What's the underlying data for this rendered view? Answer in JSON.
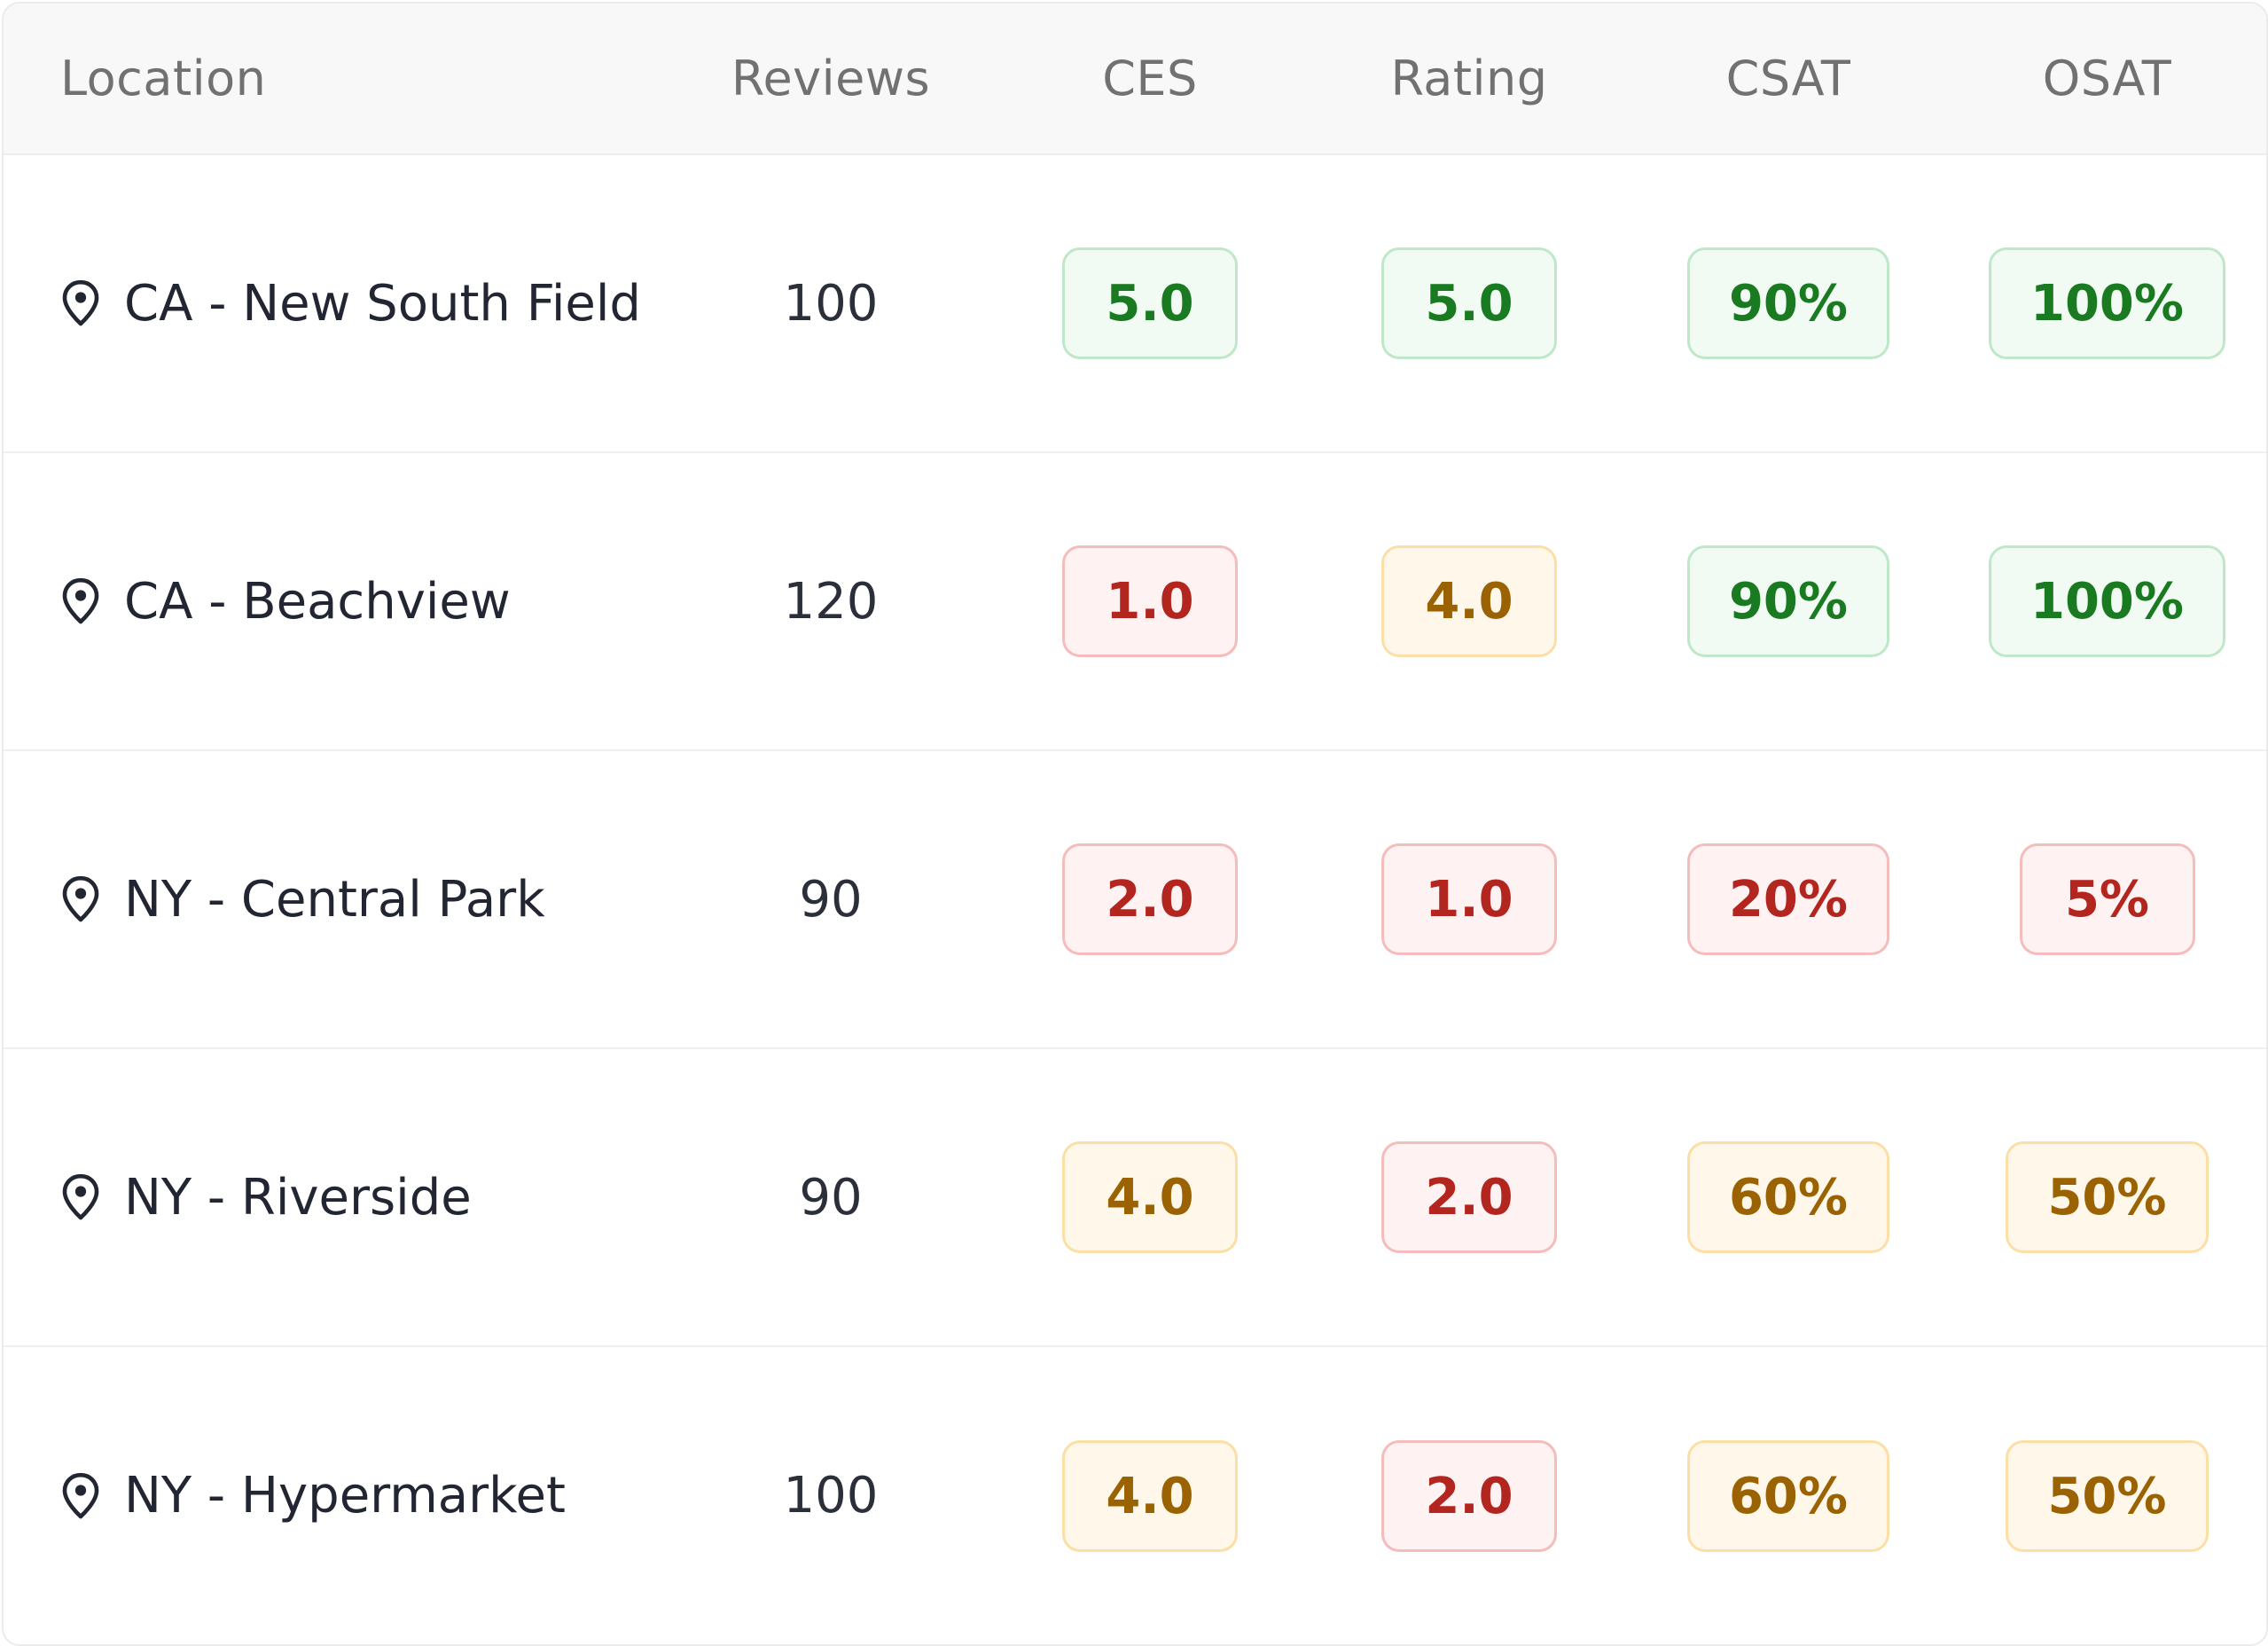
{
  "table": {
    "headers": {
      "location": "Location",
      "reviews": "Reviews",
      "ces": "CES",
      "rating": "Rating",
      "csat": "CSAT",
      "osat": "OSAT"
    },
    "status_colors": {
      "good": "#1a7a22",
      "bad": "#b3251f",
      "mid": "#9a6200"
    },
    "rows": [
      {
        "location": "CA - New South Field",
        "reviews": "100",
        "ces": "5.0",
        "ces_status": "good",
        "rating": "5.0",
        "rating_status": "good",
        "csat": "90%",
        "csat_status": "good",
        "osat": "100%",
        "osat_status": "good"
      },
      {
        "location": "CA - Beachview",
        "reviews": "120",
        "ces": "1.0",
        "ces_status": "bad",
        "rating": "4.0",
        "rating_status": "mid",
        "csat": "90%",
        "csat_status": "good",
        "osat": "100%",
        "osat_status": "good"
      },
      {
        "location": "NY - Central Park",
        "reviews": "90",
        "ces": "2.0",
        "ces_status": "bad",
        "rating": "1.0",
        "rating_status": "bad",
        "csat": "20%",
        "csat_status": "bad",
        "osat": "5%",
        "osat_status": "bad"
      },
      {
        "location": "NY - Riverside",
        "reviews": "90",
        "ces": "4.0",
        "ces_status": "mid",
        "rating": "2.0",
        "rating_status": "bad",
        "csat": "60%",
        "csat_status": "mid",
        "osat": "50%",
        "osat_status": "mid"
      },
      {
        "location": "NY - Hypermarket",
        "reviews": "100",
        "ces": "4.0",
        "ces_status": "mid",
        "rating": "2.0",
        "rating_status": "bad",
        "csat": "60%",
        "csat_status": "mid",
        "osat": "50%",
        "osat_status": "mid"
      }
    ],
    "icons": {
      "location": "map-pin-icon"
    }
  }
}
